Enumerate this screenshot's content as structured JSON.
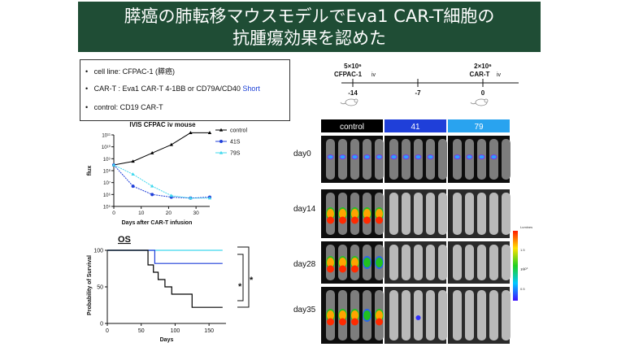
{
  "banner": {
    "line1": "膵癌の肺転移マウスモデルでEva1 CAR-T細胞の",
    "line2": "抗腫瘍効果を認めた"
  },
  "info": {
    "bullets": [
      {
        "text": "cell line: CFPAC-1 (膵癌)",
        "extra": ""
      },
      {
        "text": "CAR-T : Eva1 CAR-T 4-1BB or CD79A/CD40 ",
        "extra": "Short"
      },
      {
        "text": "control: CD19 CAR-T",
        "extra": ""
      }
    ]
  },
  "timeline": {
    "left_label_1": "5×10⁶",
    "left_label_2": "CFPAC-1",
    "left_label_3": "iv",
    "right_label_1": "2×10⁶",
    "right_label_2": "CAR-T",
    "right_label_3": "iv",
    "ticks": [
      "-14",
      "-7",
      "0"
    ]
  },
  "mice": {
    "headers": [
      "control",
      "41",
      "79"
    ],
    "header_colors": [
      "#000000",
      "#1f3fd9",
      "#29a3ef"
    ],
    "days": [
      "day0",
      "day14",
      "day28",
      "day35"
    ],
    "scale_caption": "Luminescence",
    "scale_values": [
      "1.5",
      "1.0",
      "0.5"
    ],
    "scale_unit": "×10⁶"
  },
  "chart_data": [
    {
      "type": "line",
      "title": "IVIS CFPAC iv mouse",
      "xlabel": "Days after CAR-T infusion",
      "ylabel": "flux",
      "x": [
        0,
        7,
        14,
        21,
        28,
        35
      ],
      "xlim": [
        0,
        35
      ],
      "xticks": [
        "0",
        "10",
        "20",
        "30"
      ],
      "ylim_log10": [
        5,
        11
      ],
      "yticks": [
        "10⁵",
        "10⁶",
        "10⁷",
        "10⁸",
        "10⁹",
        "10¹⁰",
        "10¹¹"
      ],
      "legend_position": "top-right",
      "series": [
        {
          "name": "control",
          "color": "#000000",
          "values": [
            300000000,
            600000000,
            3000000000,
            15000000000,
            150000000000,
            150000000000
          ]
        },
        {
          "name": "41S",
          "color": "#1f3fd9",
          "values": [
            300000000,
            5000000,
            1000000,
            600000,
            500000,
            600000
          ]
        },
        {
          "name": "79S",
          "color": "#3fd8ee",
          "values": [
            300000000,
            50000000,
            5000000,
            800000,
            500000,
            500000
          ]
        }
      ]
    },
    {
      "type": "line",
      "title": "OS",
      "xlabel": "Days",
      "ylabel": "Probability of Survival",
      "xlim": [
        0,
        175
      ],
      "ylim": [
        0,
        100
      ],
      "xticks": [
        "0",
        "50",
        "100",
        "150"
      ],
      "yticks": [
        "0",
        "50",
        "100"
      ],
      "significance": [
        "*",
        "*"
      ],
      "series": [
        {
          "name": "control",
          "color": "#000000",
          "x": [
            0,
            60,
            60,
            68,
            68,
            75,
            75,
            85,
            85,
            95,
            95,
            125,
            125,
            170
          ],
          "values": [
            100,
            100,
            80,
            80,
            70,
            70,
            60,
            60,
            50,
            50,
            40,
            40,
            22,
            22
          ]
        },
        {
          "name": "41S",
          "color": "#1f3fd9",
          "x": [
            0,
            70,
            70,
            170
          ],
          "values": [
            100,
            100,
            82,
            82
          ]
        },
        {
          "name": "79S",
          "color": "#3fd8ee",
          "x": [
            0,
            170
          ],
          "values": [
            100,
            100
          ]
        }
      ]
    }
  ]
}
